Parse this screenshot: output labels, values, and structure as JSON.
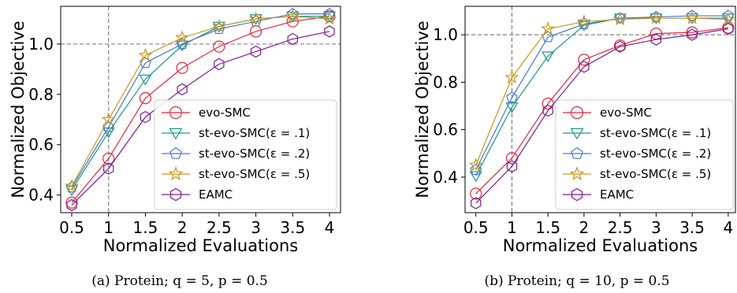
{
  "chart_data": [
    {
      "type": "line",
      "caption": "(a) Protein; q = 5, p = 0.5",
      "xlabel": "Normalized Evaluations",
      "ylabel": "Normalized Objective",
      "x": [
        0.5,
        1,
        1.5,
        2,
        2.5,
        3,
        3.5,
        4
      ],
      "x_tick_labels": [
        "0.5",
        "1",
        "1.5",
        "2",
        "2.5",
        "3",
        "3.5",
        "4"
      ],
      "y_ticks": [
        0.4,
        0.6,
        0.8,
        1.0
      ],
      "y_tick_labels": [
        "0.4",
        "0.6",
        "0.8",
        "1.0"
      ],
      "xlim": [
        0.35,
        4.15
      ],
      "ylim": [
        0.33,
        1.15
      ],
      "ref_x": 1,
      "ref_y": 1.0,
      "legend": "lower-right",
      "grid": false,
      "series": [
        {
          "name": "evo-SMC",
          "marker": "circle",
          "color": "#e8253f",
          "values": [
            0.37,
            0.545,
            0.785,
            0.905,
            0.99,
            1.05,
            1.09,
            1.11
          ]
        },
        {
          "name": "st-evo-SMC(ε = .1)",
          "marker": "triangle-down",
          "color": "#1a9a8a",
          "values": [
            0.42,
            0.65,
            0.86,
            0.995,
            1.07,
            1.1,
            1.11,
            1.11
          ]
        },
        {
          "name": "st-evo-SMC(ε = .2)",
          "marker": "pentagon",
          "color": "#4a76d8",
          "values": [
            0.43,
            0.67,
            0.925,
            1.0,
            1.06,
            1.09,
            1.12,
            1.12
          ]
        },
        {
          "name": "st-evo-SMC(ε = .5)",
          "marker": "star",
          "color": "#c89a1e",
          "values": [
            0.435,
            0.7,
            0.955,
            1.025,
            1.07,
            1.1,
            1.11,
            1.1
          ]
        },
        {
          "name": "EAMC",
          "marker": "hexagon",
          "color": "#7a1d8e",
          "values": [
            0.36,
            0.505,
            0.71,
            0.82,
            0.92,
            0.97,
            1.02,
            1.05
          ]
        }
      ]
    },
    {
      "type": "line",
      "caption": "(b) Protein; q = 10, p = 0.5",
      "xlabel": "Normalized Evaluations",
      "ylabel": "Normalized Objective",
      "x": [
        0.5,
        1,
        1.5,
        2,
        2.5,
        3,
        3.5,
        4
      ],
      "x_tick_labels": [
        "0.5",
        "1",
        "1.5",
        "2",
        "2.5",
        "3",
        "3.5",
        "4"
      ],
      "y_ticks": [
        0.4,
        0.6,
        0.8,
        1.0
      ],
      "y_tick_labels": [
        "0.4",
        "0.6",
        "0.8",
        "1.0"
      ],
      "xlim": [
        0.35,
        4.1
      ],
      "ylim": [
        0.25,
        1.12
      ],
      "ref_x": 1,
      "ref_y": 1.0,
      "legend": "lower-right",
      "grid": false,
      "series": [
        {
          "name": "evo-SMC",
          "marker": "circle",
          "color": "#e8253f",
          "values": [
            0.33,
            0.48,
            0.71,
            0.895,
            0.955,
            1.005,
            1.01,
            1.03
          ]
        },
        {
          "name": "st-evo-SMC(ε = .1)",
          "marker": "triangle-down",
          "color": "#1a9a8a",
          "values": [
            0.405,
            0.695,
            0.91,
            1.04,
            1.07,
            1.07,
            1.07,
            1.07
          ]
        },
        {
          "name": "st-evo-SMC(ε = .2)",
          "marker": "pentagon",
          "color": "#4a76d8",
          "values": [
            0.43,
            0.735,
            0.99,
            1.045,
            1.07,
            1.075,
            1.08,
            1.08
          ]
        },
        {
          "name": "st-evo-SMC(ε = .5)",
          "marker": "star",
          "color": "#c89a1e",
          "values": [
            0.45,
            0.82,
            1.025,
            1.055,
            1.065,
            1.07,
            1.07,
            1.065
          ]
        },
        {
          "name": "EAMC",
          "marker": "hexagon",
          "color": "#7a1d8e",
          "values": [
            0.29,
            0.445,
            0.68,
            0.865,
            0.95,
            0.98,
            1.0,
            1.025
          ]
        }
      ]
    }
  ]
}
